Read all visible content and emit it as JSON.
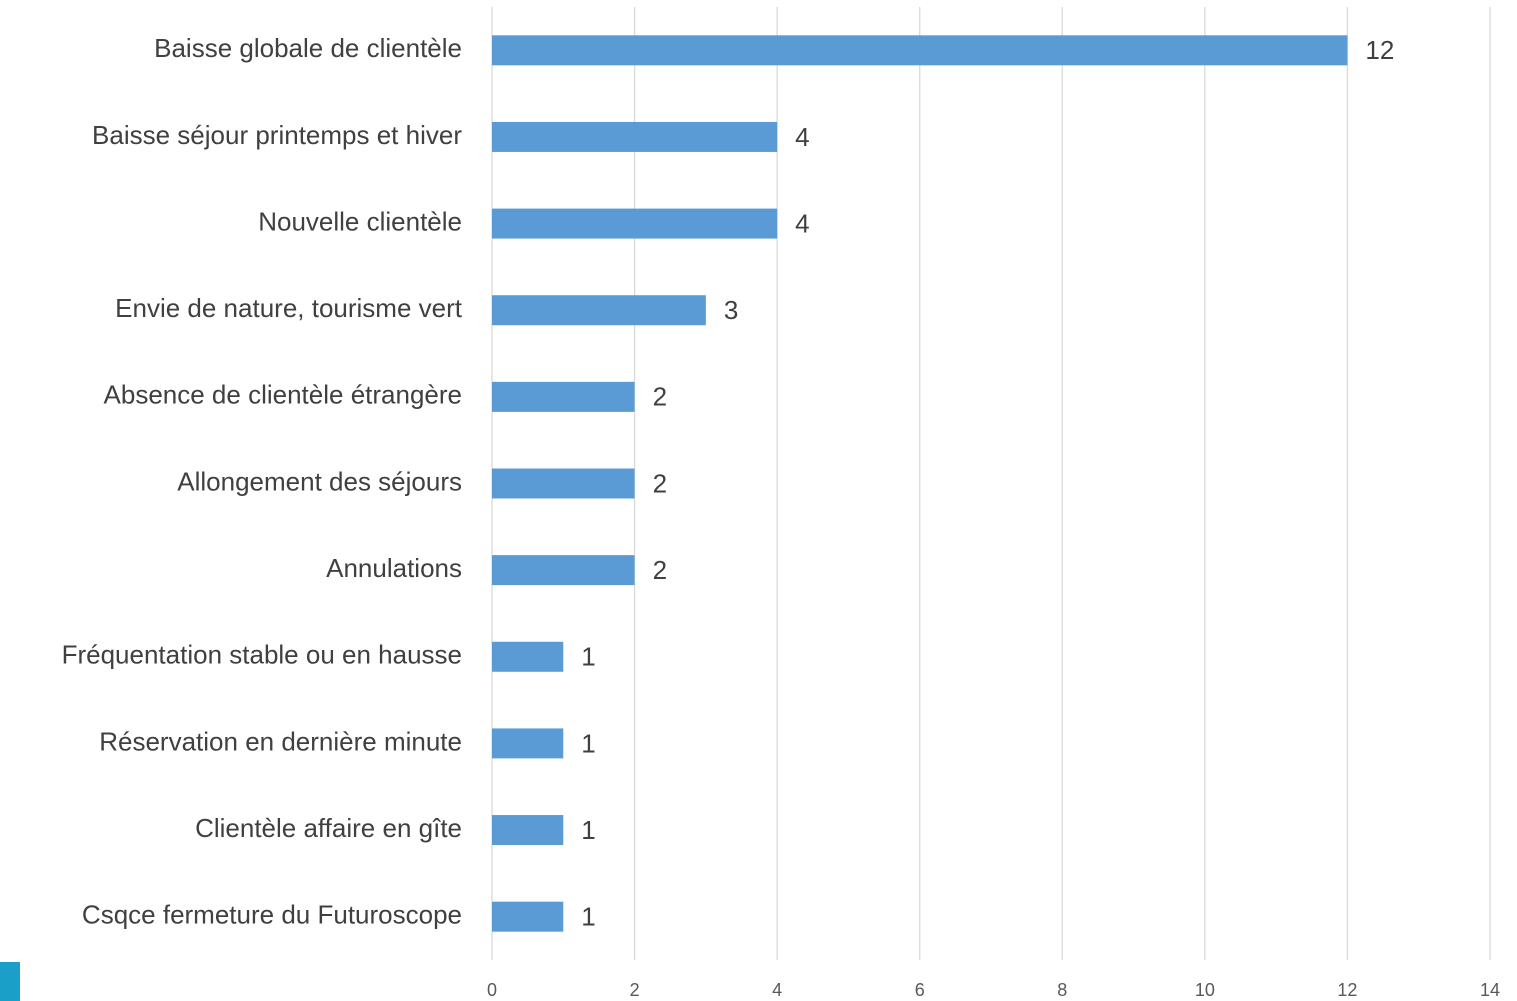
{
  "chart_data": {
    "type": "bar",
    "orientation": "horizontal",
    "categories": [
      "Baisse globale de clientèle",
      "Baisse séjour printemps et hiver",
      "Nouvelle clientèle",
      "Envie de nature, tourisme vert",
      "Absence de clientèle étrangère",
      "Allongement des séjours",
      "Annulations",
      "Fréquentation stable ou en hausse",
      "Réservation en dernière minute",
      "Clientèle affaire en gîte",
      "Csqce fermeture du Futuroscope"
    ],
    "values": [
      12,
      4,
      4,
      3,
      2,
      2,
      2,
      1,
      1,
      1,
      1
    ],
    "color": "#5b9bd5",
    "xlim": [
      0,
      14
    ],
    "xticks": [
      0,
      2,
      4,
      6,
      8,
      10,
      12,
      14
    ],
    "grid": true
  }
}
